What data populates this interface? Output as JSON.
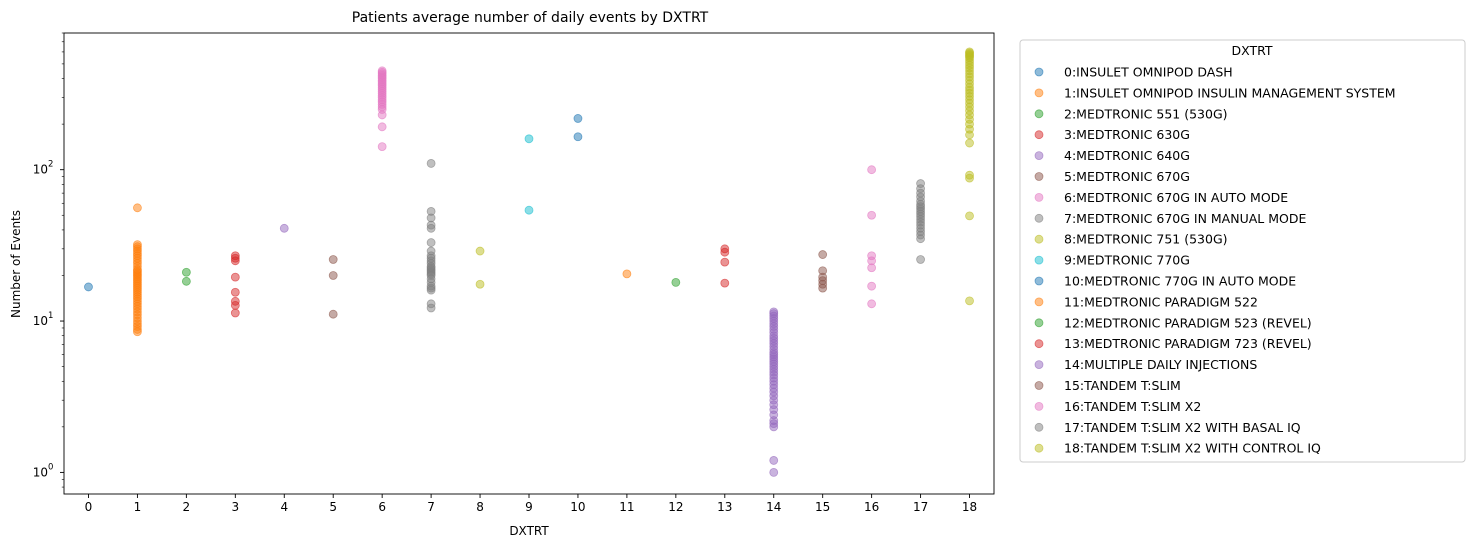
{
  "chart_data": {
    "type": "scatter",
    "title": "Patients average number of daily events by DXTRT",
    "xlabel": "DXTRT",
    "ylabel": "Number of Events",
    "yscale": "log",
    "xlim": [
      -0.5,
      18.5
    ],
    "ylim": [
      0.72,
      800
    ],
    "x_ticks": [
      "0",
      "1",
      "2",
      "3",
      "4",
      "5",
      "6",
      "7",
      "8",
      "9",
      "10",
      "11",
      "12",
      "13",
      "14",
      "15",
      "16",
      "17",
      "18"
    ],
    "y_ticks": [
      {
        "value": 1,
        "base": "10",
        "exp": "0"
      },
      {
        "value": 10,
        "base": "10",
        "exp": "1"
      },
      {
        "value": 100,
        "base": "10",
        "exp": "2"
      }
    ],
    "grid": false,
    "legend": {
      "title": "DXTRT",
      "position": "outside-right"
    },
    "series": [
      {
        "name": "0:INSULET OMNIPOD DASH",
        "color": "#1f77b4",
        "x": 0,
        "y": [
          16.8
        ]
      },
      {
        "name": "1:INSULET OMNIPOD INSULIN MANAGEMENT SYSTEM",
        "color": "#ff7f0e",
        "x": 1,
        "y": [
          56,
          32,
          31,
          30,
          29,
          28,
          27,
          26,
          25,
          24,
          23,
          22,
          21.5,
          21,
          20.5,
          20,
          19.5,
          19,
          18.5,
          18,
          17.5,
          17,
          16.5,
          16,
          15.5,
          15,
          14.5,
          14,
          13.5,
          13,
          12.5,
          12,
          11.5,
          11,
          10.5,
          10,
          9.6,
          9.2,
          8.8,
          8.5
        ]
      },
      {
        "name": "2:MEDTRONIC 551 (530G)",
        "color": "#2ca02c",
        "x": 2,
        "y": [
          21,
          18.3
        ]
      },
      {
        "name": "3:MEDTRONIC 630G",
        "color": "#d62728",
        "x": 3,
        "y": [
          27,
          26,
          25,
          19.5,
          15.5,
          13.5,
          12.7,
          11.3
        ]
      },
      {
        "name": "4:MEDTRONIC 640G",
        "color": "#9467bd",
        "x": 4,
        "y": [
          41
        ]
      },
      {
        "name": "5:MEDTRONIC 670G",
        "color": "#8c564b",
        "x": 5,
        "y": [
          25.5,
          20,
          11.1
        ]
      },
      {
        "name": "6:MEDTRONIC 670G IN AUTO MODE",
        "color": "#e377c2",
        "x": 6,
        "y": [
          450,
          440,
          430,
          420,
          410,
          400,
          390,
          380,
          370,
          360,
          350,
          340,
          330,
          320,
          310,
          300,
          290,
          280,
          270,
          260,
          250,
          230,
          192,
          142
        ]
      },
      {
        "name": "7:MEDTRONIC 670G IN MANUAL MODE",
        "color": "#7f7f7f",
        "x": 7,
        "y": [
          110,
          53,
          48,
          43,
          41,
          33,
          29,
          27,
          26,
          25,
          24,
          23,
          22.5,
          22,
          21.5,
          21,
          20.5,
          20,
          19,
          18,
          17,
          16.5,
          16,
          13,
          12.2
        ]
      },
      {
        "name": "8:MEDTRONIC 751 (530G)",
        "color": "#bcbd22",
        "x": 8,
        "y": [
          29,
          17.5
        ]
      },
      {
        "name": "9:MEDTRONIC 770G",
        "color": "#17becf",
        "x": 9,
        "y": [
          160,
          54
        ]
      },
      {
        "name": "10:MEDTRONIC 770G IN AUTO MODE",
        "color": "#1f77b4",
        "x": 10,
        "y": [
          218,
          165
        ]
      },
      {
        "name": "11:MEDTRONIC PARADIGM 522",
        "color": "#ff7f0e",
        "x": 11,
        "y": [
          20.5
        ]
      },
      {
        "name": "12:MEDTRONIC PARADIGM 523 (REVEL)",
        "color": "#2ca02c",
        "x": 12,
        "y": [
          18
        ]
      },
      {
        "name": "13:MEDTRONIC PARADIGM 723 (REVEL)",
        "color": "#d62728",
        "x": 13,
        "y": [
          30,
          28.5,
          24.5,
          17.8
        ]
      },
      {
        "name": "14:MULTIPLE DAILY INJECTIONS",
        "color": "#9467bd",
        "x": 14,
        "y": [
          11.5,
          11.2,
          10.8,
          10.4,
          10,
          9.6,
          9.2,
          8.8,
          8.4,
          8,
          7.7,
          7.4,
          7.1,
          6.8,
          6.5,
          6.2,
          6,
          5.8,
          5.6,
          5.4,
          5.2,
          5,
          4.8,
          4.6,
          4.4,
          4.2,
          4,
          3.8,
          3.6,
          3.4,
          3.2,
          3,
          2.8,
          2.6,
          2.4,
          2.2,
          2.1,
          2,
          1.2,
          1
        ]
      },
      {
        "name": "15:TANDEM T:SLIM",
        "color": "#8c564b",
        "x": 15,
        "y": [
          27.5,
          21.5,
          19.5,
          18.5,
          17.5,
          16.5
        ]
      },
      {
        "name": "16:TANDEM T:SLIM X2",
        "color": "#e377c2",
        "x": 16,
        "y": [
          100,
          50,
          27,
          25,
          22.5,
          17,
          13
        ]
      },
      {
        "name": "17:TANDEM T:SLIM X2 WITH BASAL IQ",
        "color": "#7f7f7f",
        "x": 17,
        "y": [
          81,
          75,
          70,
          66,
          62,
          59,
          57,
          55,
          53,
          51,
          49,
          47,
          45,
          43,
          41,
          39,
          37,
          35,
          25.5
        ]
      },
      {
        "name": "18:TANDEM T:SLIM X2 WITH CONTROL IQ",
        "color": "#bcbd22",
        "x": 18,
        "y": [
          600,
          590,
          580,
          570,
          560,
          550,
          530,
          510,
          490,
          470,
          450,
          430,
          410,
          390,
          370,
          350,
          335,
          320,
          305,
          290,
          275,
          260,
          245,
          230,
          215,
          200,
          185,
          170,
          150,
          92,
          88,
          49.5,
          13.6
        ]
      }
    ]
  }
}
